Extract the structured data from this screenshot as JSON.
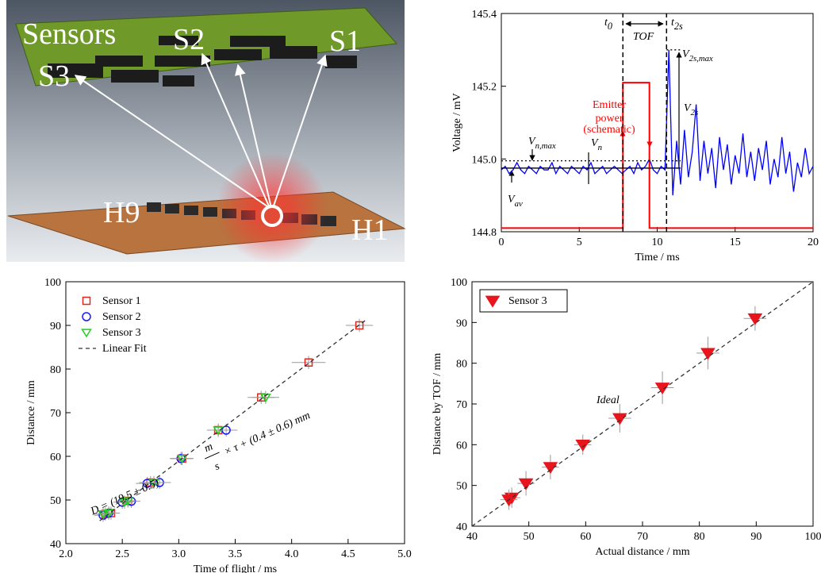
{
  "illustration": {
    "labels": {
      "sensors": "Sensors",
      "s1": "S1",
      "s2": "S2",
      "s3": "S3",
      "h9": "H9",
      "h1": "H1"
    }
  },
  "chart_data": [
    {
      "type": "line",
      "xlabel": "Time  /  ms",
      "ylabel": "Voltage  /  mV",
      "xlim": [
        0,
        20
      ],
      "xticks": [
        0,
        5,
        10,
        15,
        20
      ],
      "ylim": [
        144.8,
        145.4
      ],
      "yticks": [
        144.8,
        {
          "value": 145,
          "label": "145.0"
        },
        145.2,
        145.4
      ],
      "vlines": [
        7.8,
        10.6
      ],
      "series": [
        {
          "color": "#0000ff",
          "line": "solid",
          "x": [
            0,
            0.25,
            0.5,
            0.75,
            1,
            1.25,
            1.5,
            1.75,
            2,
            2.25,
            2.5,
            2.75,
            3,
            3.25,
            3.5,
            3.75,
            4,
            4.25,
            4.5,
            4.75,
            5,
            5.25,
            5.5,
            5.75,
            6,
            6.25,
            6.5,
            6.75,
            7,
            7.25,
            7.5,
            7.75,
            8,
            8.25,
            8.5,
            8.75,
            9,
            9.25,
            9.5,
            9.75,
            10,
            10.25,
            10.5,
            10.75,
            11,
            11.25,
            11.5,
            11.75,
            12,
            12.25,
            12.5,
            12.75,
            13,
            13.25,
            13.5,
            13.75,
            14,
            14.25,
            14.5,
            14.75,
            15,
            15.25,
            15.5,
            15.75,
            16,
            16.25,
            16.5,
            16.75,
            17,
            17.25,
            17.5,
            17.75,
            18,
            18.25,
            18.5,
            18.75,
            19,
            19.25,
            19.5,
            19.75,
            20
          ],
          "values": [
            144.97,
            144.98,
            144.96,
            144.97,
            144.99,
            144.97,
            144.96,
            144.98,
            144.97,
            144.96,
            144.98,
            144.97,
            144.97,
            144.99,
            144.96,
            144.98,
            144.97,
            144.96,
            144.98,
            144.97,
            144.96,
            144.98,
            144.97,
            144.99,
            144.96,
            144.97,
            144.98,
            144.96,
            144.97,
            144.98,
            144.97,
            144.96,
            144.97,
            144.98,
            144.96,
            144.99,
            144.97,
            144.98,
            145.0,
            144.97,
            144.96,
            144.98,
            144.97,
            145.3,
            144.9,
            145.05,
            144.93,
            145.08,
            144.95,
            145.02,
            145.15,
            144.94,
            145.05,
            144.96,
            145.03,
            144.92,
            145.06,
            144.97,
            145.04,
            144.93,
            145.01,
            144.96,
            145.07,
            144.95,
            145.02,
            144.94,
            145.03,
            144.97,
            145.05,
            144.93,
            145.0,
            144.95,
            145.06,
            144.96,
            145.02,
            144.91,
            144.99,
            144.95,
            145.03,
            144.96,
            144.98
          ]
        },
        {
          "color": "#ff0000",
          "line": "solid",
          "x": [
            0,
            7.8,
            7.8,
            9.5,
            9.5,
            20
          ],
          "values": [
            144.81,
            144.81,
            145.21,
            145.21,
            144.81,
            144.81
          ]
        },
        {
          "color": "#000000",
          "line": "solid",
          "x": [
            0,
            11.5
          ],
          "values": [
            144.975,
            144.975
          ]
        },
        {
          "color": "#000000",
          "line": "dot",
          "x": [
            0,
            11.5
          ],
          "values": [
            144.995,
            144.995
          ]
        },
        {
          "color": "#000000",
          "line": "dot",
          "x": [
            10.6,
            11.5
          ],
          "values": [
            145.3,
            145.3
          ]
        }
      ],
      "annotations": [
        {
          "text": "t",
          "sub": "0"
        },
        {
          "text": "t",
          "sub": "2s"
        },
        {
          "text": "TOF"
        },
        {
          "text": "V",
          "sub": "2s,max"
        },
        {
          "text": "V",
          "sub": "2s"
        },
        {
          "text": "Emitter"
        },
        {
          "text": "power"
        },
        {
          "text": "(schematic)"
        },
        {
          "text": "V",
          "sub": "n,max"
        },
        {
          "text": "V",
          "sub": "n"
        },
        {
          "text": "V",
          "sub": "av"
        }
      ]
    },
    {
      "type": "scatter",
      "xlabel": "Time of flight  /  ms",
      "ylabel": "Distance  /  mm",
      "legend": "upper left",
      "xlim": [
        2,
        5
      ],
      "xticks": [
        {
          "value": 2,
          "label": "2.0"
        },
        2.5,
        {
          "value": 3,
          "label": "3.0"
        },
        3.5,
        {
          "value": 4,
          "label": "4.0"
        },
        4.5,
        {
          "value": 5,
          "label": "5.0"
        }
      ],
      "ylim": [
        40,
        100
      ],
      "yticks": [
        40,
        50,
        60,
        70,
        80,
        90,
        100
      ],
      "series": [
        {
          "name": "Sensor 1",
          "color": "#e8251c",
          "marker": "square",
          "x": [
            4.6,
            4.15,
            3.73,
            3.35,
            3.03,
            2.75,
            2.55,
            2.4,
            2.35
          ],
          "values": [
            90,
            81.5,
            73.5,
            66,
            59.5,
            54,
            49.8,
            47,
            46.8
          ],
          "xerr": [
            0.12,
            0.15,
            0.12,
            0.1,
            0.1,
            0.1,
            0.08,
            0.08,
            0.08
          ],
          "yerr": [
            1.5,
            1.5,
            1.5,
            1.5,
            1.5,
            1.5,
            1.5,
            1.5,
            1.5
          ]
        },
        {
          "name": "Sensor 2",
          "color": "#1a1aff",
          "marker": "circle",
          "x": [
            3.42,
            2.83,
            2.72,
            3.02,
            2.58,
            2.5,
            2.38,
            2.33
          ],
          "values": [
            66,
            54,
            53.8,
            59.5,
            49.7,
            49.5,
            47,
            46.5
          ],
          "xerr": [
            0.1,
            0.1,
            0.1,
            0.1,
            0.08,
            0.08,
            0.08,
            0.08
          ],
          "yerr": [
            1.5,
            1.5,
            1.5,
            1.5,
            1.5,
            1.5,
            1.5,
            1.5
          ]
        },
        {
          "name": "Sensor 3",
          "color": "#1fd11f",
          "marker": "triangle-down",
          "x": [
            3.77,
            3.35,
            3.03,
            2.78,
            2.55,
            2.52,
            2.38,
            2.33
          ],
          "values": [
            73.5,
            66,
            59.5,
            54,
            49.8,
            49.5,
            47,
            46.8
          ],
          "xerr": [
            0.12,
            0.1,
            0.1,
            0.1,
            0.08,
            0.08,
            0.08,
            0.08
          ],
          "yerr": [
            1.5,
            1.5,
            1.5,
            1.5,
            1.5,
            1.5,
            1.5,
            1.5
          ]
        },
        {
          "name": "Linear Fit",
          "color": "#333333",
          "line": "dash",
          "x": [
            2.3,
            4.65
          ],
          "values": [
            45.25,
            91.08
          ]
        }
      ],
      "annotations": [
        {
          "text": "D = (19.5 ± 0.5)"
        },
        {
          "text": "m"
        },
        {
          "text": "s"
        },
        {
          "text": "× τ + (0.4 ± 0.6) mm"
        }
      ]
    },
    {
      "type": "scatter",
      "xlabel": "Actual distance  /  mm",
      "ylabel": "Distance by TOF  /  mm",
      "legend": "upper left",
      "xlim": [
        40,
        100
      ],
      "xticks": [
        40,
        50,
        60,
        70,
        80,
        90,
        100
      ],
      "ylim": [
        40,
        100
      ],
      "yticks": [
        40,
        50,
        60,
        70,
        80,
        90,
        100
      ],
      "series": [
        {
          "name": "Sensor 3",
          "color": "#e8151c",
          "marker": "triangle-down",
          "filled": true,
          "x": [
            47,
            46.5,
            49.5,
            53.8,
            59.5,
            66,
            73.5,
            81.5,
            89.8
          ],
          "values": [
            47,
            46.5,
            50.5,
            54.5,
            60,
            66.5,
            74,
            82.5,
            91
          ],
          "xerr": [
            1.5,
            1.5,
            1.5,
            1.5,
            1.5,
            2,
            2,
            2,
            2
          ],
          "yerr": [
            2.5,
            2.5,
            3,
            3,
            2.5,
            3.5,
            4,
            4,
            3
          ]
        },
        {
          "color": "#333333",
          "line": "dash",
          "x": [
            40,
            100
          ],
          "values": [
            40,
            100
          ]
        }
      ],
      "annotations": [
        {
          "text": "Ideal"
        }
      ]
    }
  ]
}
